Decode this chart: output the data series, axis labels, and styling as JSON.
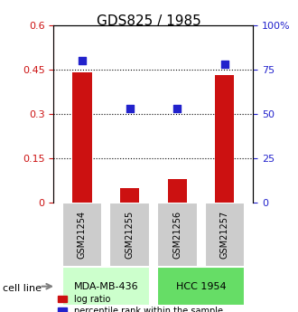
{
  "title": "GDS825 / 1985",
  "samples": [
    "GSM21254",
    "GSM21255",
    "GSM21256",
    "GSM21257"
  ],
  "log_ratio": [
    0.44,
    0.05,
    0.08,
    0.43
  ],
  "percentile_rank": [
    80,
    53,
    53,
    78
  ],
  "cell_lines": [
    {
      "label": "MDA-MB-436",
      "samples": [
        0,
        1
      ],
      "color": "#ccffcc"
    },
    {
      "label": "HCC 1954",
      "samples": [
        2,
        3
      ],
      "color": "#66dd66"
    }
  ],
  "bar_color": "#cc1111",
  "point_color": "#2222cc",
  "left_ylim": [
    0,
    0.6
  ],
  "right_ylim": [
    0,
    100
  ],
  "left_yticks": [
    0,
    0.15,
    0.3,
    0.45,
    0.6
  ],
  "right_yticks": [
    0,
    25,
    50,
    75,
    100
  ],
  "right_yticklabels": [
    "0",
    "25",
    "50",
    "75",
    "100%"
  ],
  "left_yticklabels": [
    "0",
    "0.15",
    "0.3",
    "0.45",
    "0.6"
  ],
  "hlines": [
    0.15,
    0.3,
    0.45
  ],
  "sample_box_color": "#cccccc",
  "cell_line_label": "cell line",
  "legend_log_ratio": "log ratio",
  "legend_percentile": "percentile rank within the sample",
  "left_axis_color": "#cc1111",
  "right_axis_color": "#2222cc"
}
